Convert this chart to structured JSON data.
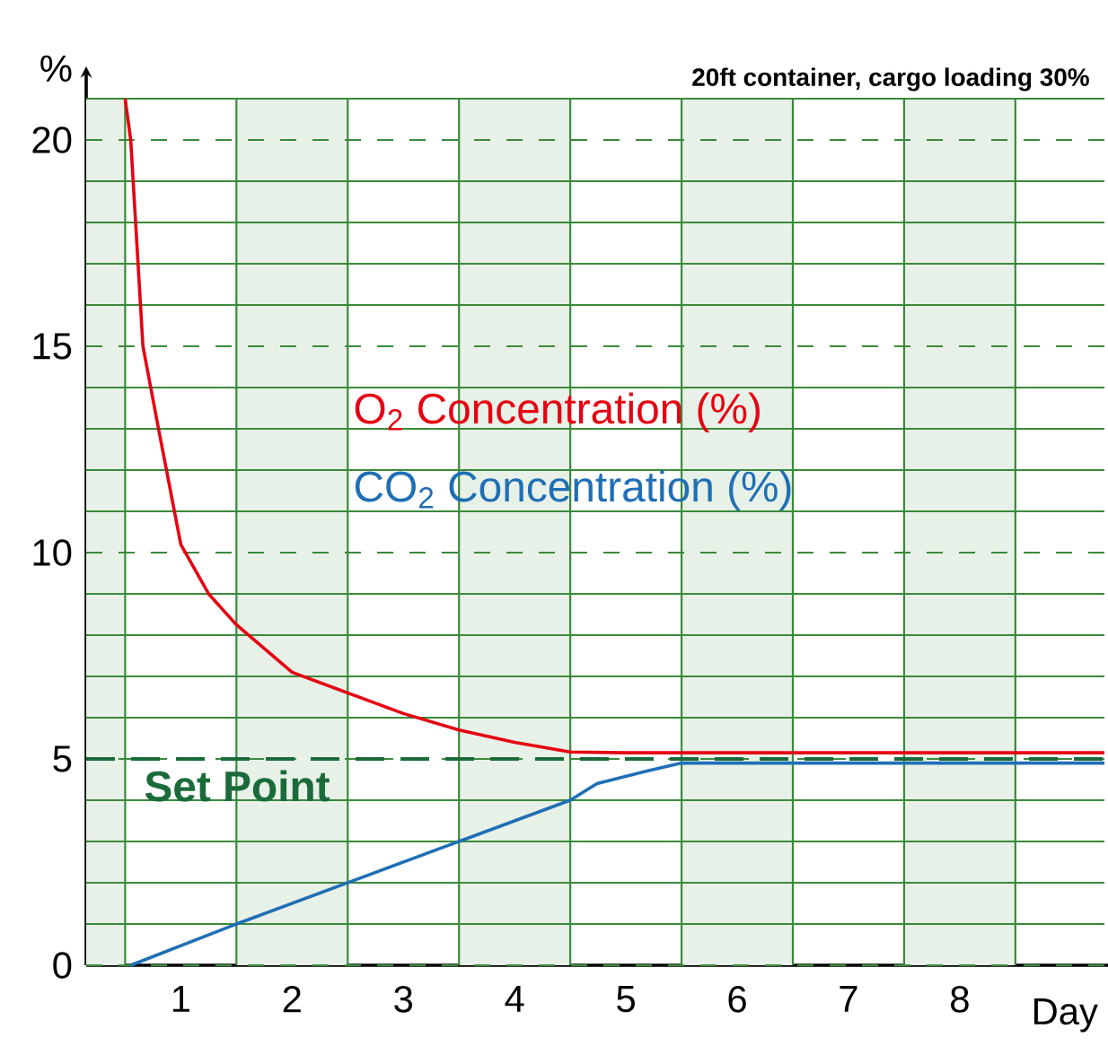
{
  "chart_data": {
    "type": "line",
    "xlabel": "Day",
    "ylabel": "%",
    "annotations": [
      "20ft container, cargo loading 30%"
    ],
    "xlim": [
      -0.35,
      8.8
    ],
    "ylim": [
      0,
      21
    ],
    "xticks": [
      {
        "value": 0,
        "label": null
      },
      {
        "value": 0.5,
        "label": "1"
      },
      {
        "value": 1,
        "label": null
      },
      {
        "value": 1.5,
        "label": "2"
      },
      {
        "value": 2,
        "label": null
      },
      {
        "value": 2.5,
        "label": "3"
      },
      {
        "value": 3,
        "label": null
      },
      {
        "value": 3.5,
        "label": "4"
      },
      {
        "value": 4,
        "label": null
      },
      {
        "value": 4.5,
        "label": "5"
      },
      {
        "value": 5,
        "label": null
      },
      {
        "value": 5.5,
        "label": "6"
      },
      {
        "value": 6,
        "label": null
      },
      {
        "value": 6.5,
        "label": "7"
      },
      {
        "value": 7,
        "label": null
      },
      {
        "value": 7.5,
        "label": "8"
      },
      {
        "value": 8,
        "label": null
      }
    ],
    "yticks": [
      0,
      {
        "value": 1,
        "label": null
      },
      {
        "value": 2,
        "label": null
      },
      {
        "value": 3,
        "label": null
      },
      {
        "value": 4,
        "label": null
      },
      5,
      {
        "value": 6,
        "label": null
      },
      {
        "value": 7,
        "label": null
      },
      {
        "value": 8,
        "label": null
      },
      {
        "value": 9,
        "label": null
      },
      10,
      {
        "value": 11,
        "label": null
      },
      {
        "value": 12,
        "label": null
      },
      {
        "value": 13,
        "label": null
      },
      {
        "value": 14,
        "label": null
      },
      15,
      {
        "value": 16,
        "label": null
      },
      {
        "value": 17,
        "label": null
      },
      {
        "value": 18,
        "label": null
      },
      {
        "value": 19,
        "label": null
      },
      20,
      {
        "value": 21,
        "label": null
      }
    ],
    "grid": true,
    "series": [
      {
        "name": "O$_{2}$ Concentration (%)",
        "color": "#e60012",
        "x": [
          0,
          0.05,
          0.16,
          0.3,
          0.5,
          0.75,
          1.0,
          1.5,
          2.0,
          2.5,
          3.0,
          3.5,
          4.0,
          4.5,
          8.8
        ],
        "values": [
          21,
          20,
          15,
          13,
          10.2,
          9,
          8.25,
          7.1,
          6.6,
          6.1,
          5.7,
          5.4,
          5.17,
          5.15,
          5.15
        ]
      },
      {
        "name": "CO$_{2}$ Concentration (%)",
        "color": "#1f6fb5",
        "x": [
          0.05,
          1.0,
          2.0,
          3.0,
          4.0,
          4.24,
          4.68,
          5.0,
          8.8
        ],
        "values": [
          0,
          1.0,
          2.0,
          3.0,
          4.0,
          4.4,
          4.7,
          4.9,
          4.9
        ]
      }
    ],
    "ref_lines": [
      {
        "axis": "y",
        "value": 5,
        "label": "Set Point",
        "color": "#1b6b3a",
        "line_style": "dashed"
      }
    ],
    "bands": [
      {
        "axis": "x",
        "from": -0.35,
        "to": 0,
        "color": "#e8f1e8"
      },
      {
        "axis": "x",
        "from": 1,
        "to": 2,
        "color": "#e8f1e8"
      },
      {
        "axis": "x",
        "from": 3,
        "to": 4,
        "color": "#e8f1e8"
      },
      {
        "axis": "x",
        "from": 5,
        "to": 6,
        "color": "#e8f1e8"
      },
      {
        "axis": "x",
        "from": 7,
        "to": 8,
        "color": "#e8f1e8"
      }
    ]
  }
}
